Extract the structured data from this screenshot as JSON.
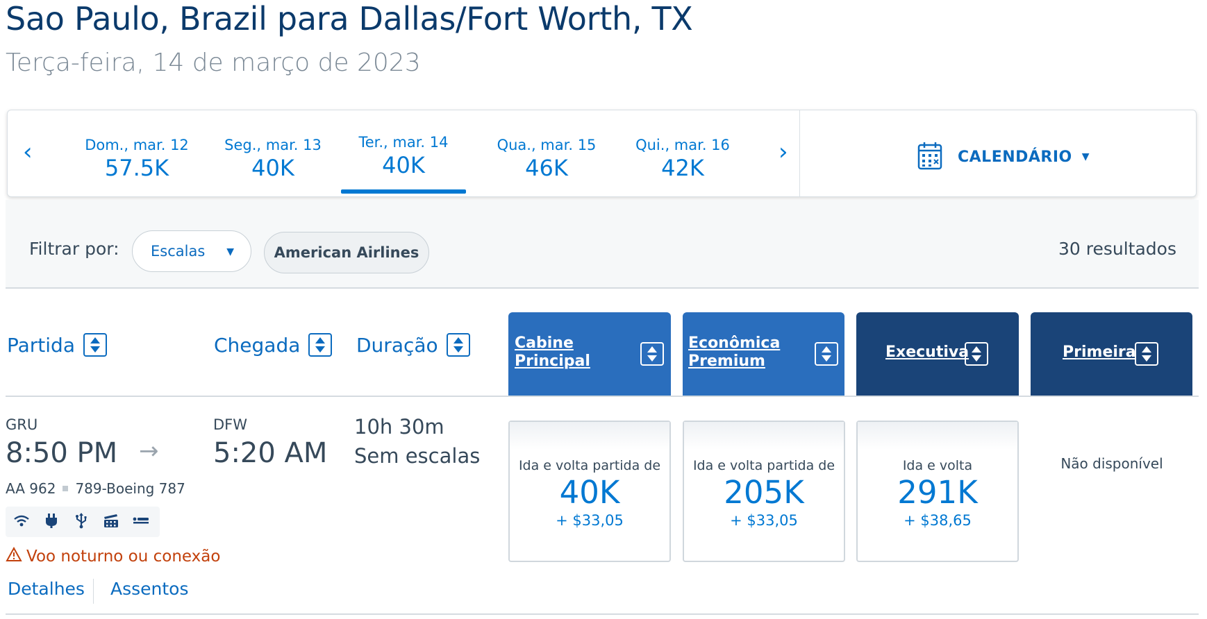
{
  "header": {
    "route_title": "Sao Paulo, Brazil para Dallas/Fort Worth, TX",
    "date": "Terça-feira, 14 de março de 2023"
  },
  "date_strip": {
    "prev_arrow": "‹",
    "next_arrow": "›",
    "days": [
      {
        "label": "Dom., mar. 12",
        "points": "57.5K"
      },
      {
        "label": "Seg., mar. 13",
        "points": "40K"
      },
      {
        "label": "Ter., mar. 14",
        "points": "40K",
        "selected": true
      },
      {
        "label": "Qua., mar. 15",
        "points": "46K"
      },
      {
        "label": "Qui., mar. 16",
        "points": "42K"
      }
    ],
    "calendar_label": "CALENDÁRIO",
    "calendar_caret": "▼",
    "calendar_icon": "calendar-icon"
  },
  "filters": {
    "label": "Filtrar por:",
    "stops_select": "Escalas",
    "stops_caret": "▼",
    "airline_chip": "American Airlines",
    "results": "30 resultados"
  },
  "columns": {
    "departure": "Partida",
    "arrival": "Chegada",
    "duration": "Duração",
    "cabins": [
      {
        "line1": "Cabine",
        "line2": "Principal"
      },
      {
        "line1": "Econômica",
        "line2": "Premium"
      },
      {
        "line1": "Executiva",
        "line2": ""
      },
      {
        "line1": "Primeira",
        "line2": ""
      }
    ]
  },
  "flight": {
    "origin": "GRU",
    "depart_time": "8:50 PM",
    "arrow": "→",
    "destination": "DFW",
    "arrive_time": "5:20 AM",
    "duration": "10h 30m",
    "stops": "Sem escalas",
    "flight_number": "AA 962",
    "aircraft": "789-Boeing 787",
    "amenities": [
      "wifi-icon",
      "power-outlet-icon",
      "usb-icon",
      "entertainment-icon",
      "lie-flat-seat-icon"
    ],
    "warning": "Voo noturno ou conexão",
    "details_link": "Detalhes",
    "seats_link": "Assentos",
    "fares": [
      {
        "caption": "Ida e volta partida de",
        "points": "40K",
        "tax": "+ $33,05"
      },
      {
        "caption": "Ida e volta partida de",
        "points": "205K",
        "tax": "+ $33,05"
      },
      {
        "caption": "Ida e volta",
        "points": "291K",
        "tax": "+ $38,65"
      }
    ],
    "first_unavailable": "Não disponível"
  },
  "colors": {
    "link_blue": "#0078d2",
    "header_blue": "#2a6ebd",
    "header_dark_blue": "#1a4478",
    "warning_orange": "#c2410c",
    "title_navy": "#0b3a6b"
  }
}
